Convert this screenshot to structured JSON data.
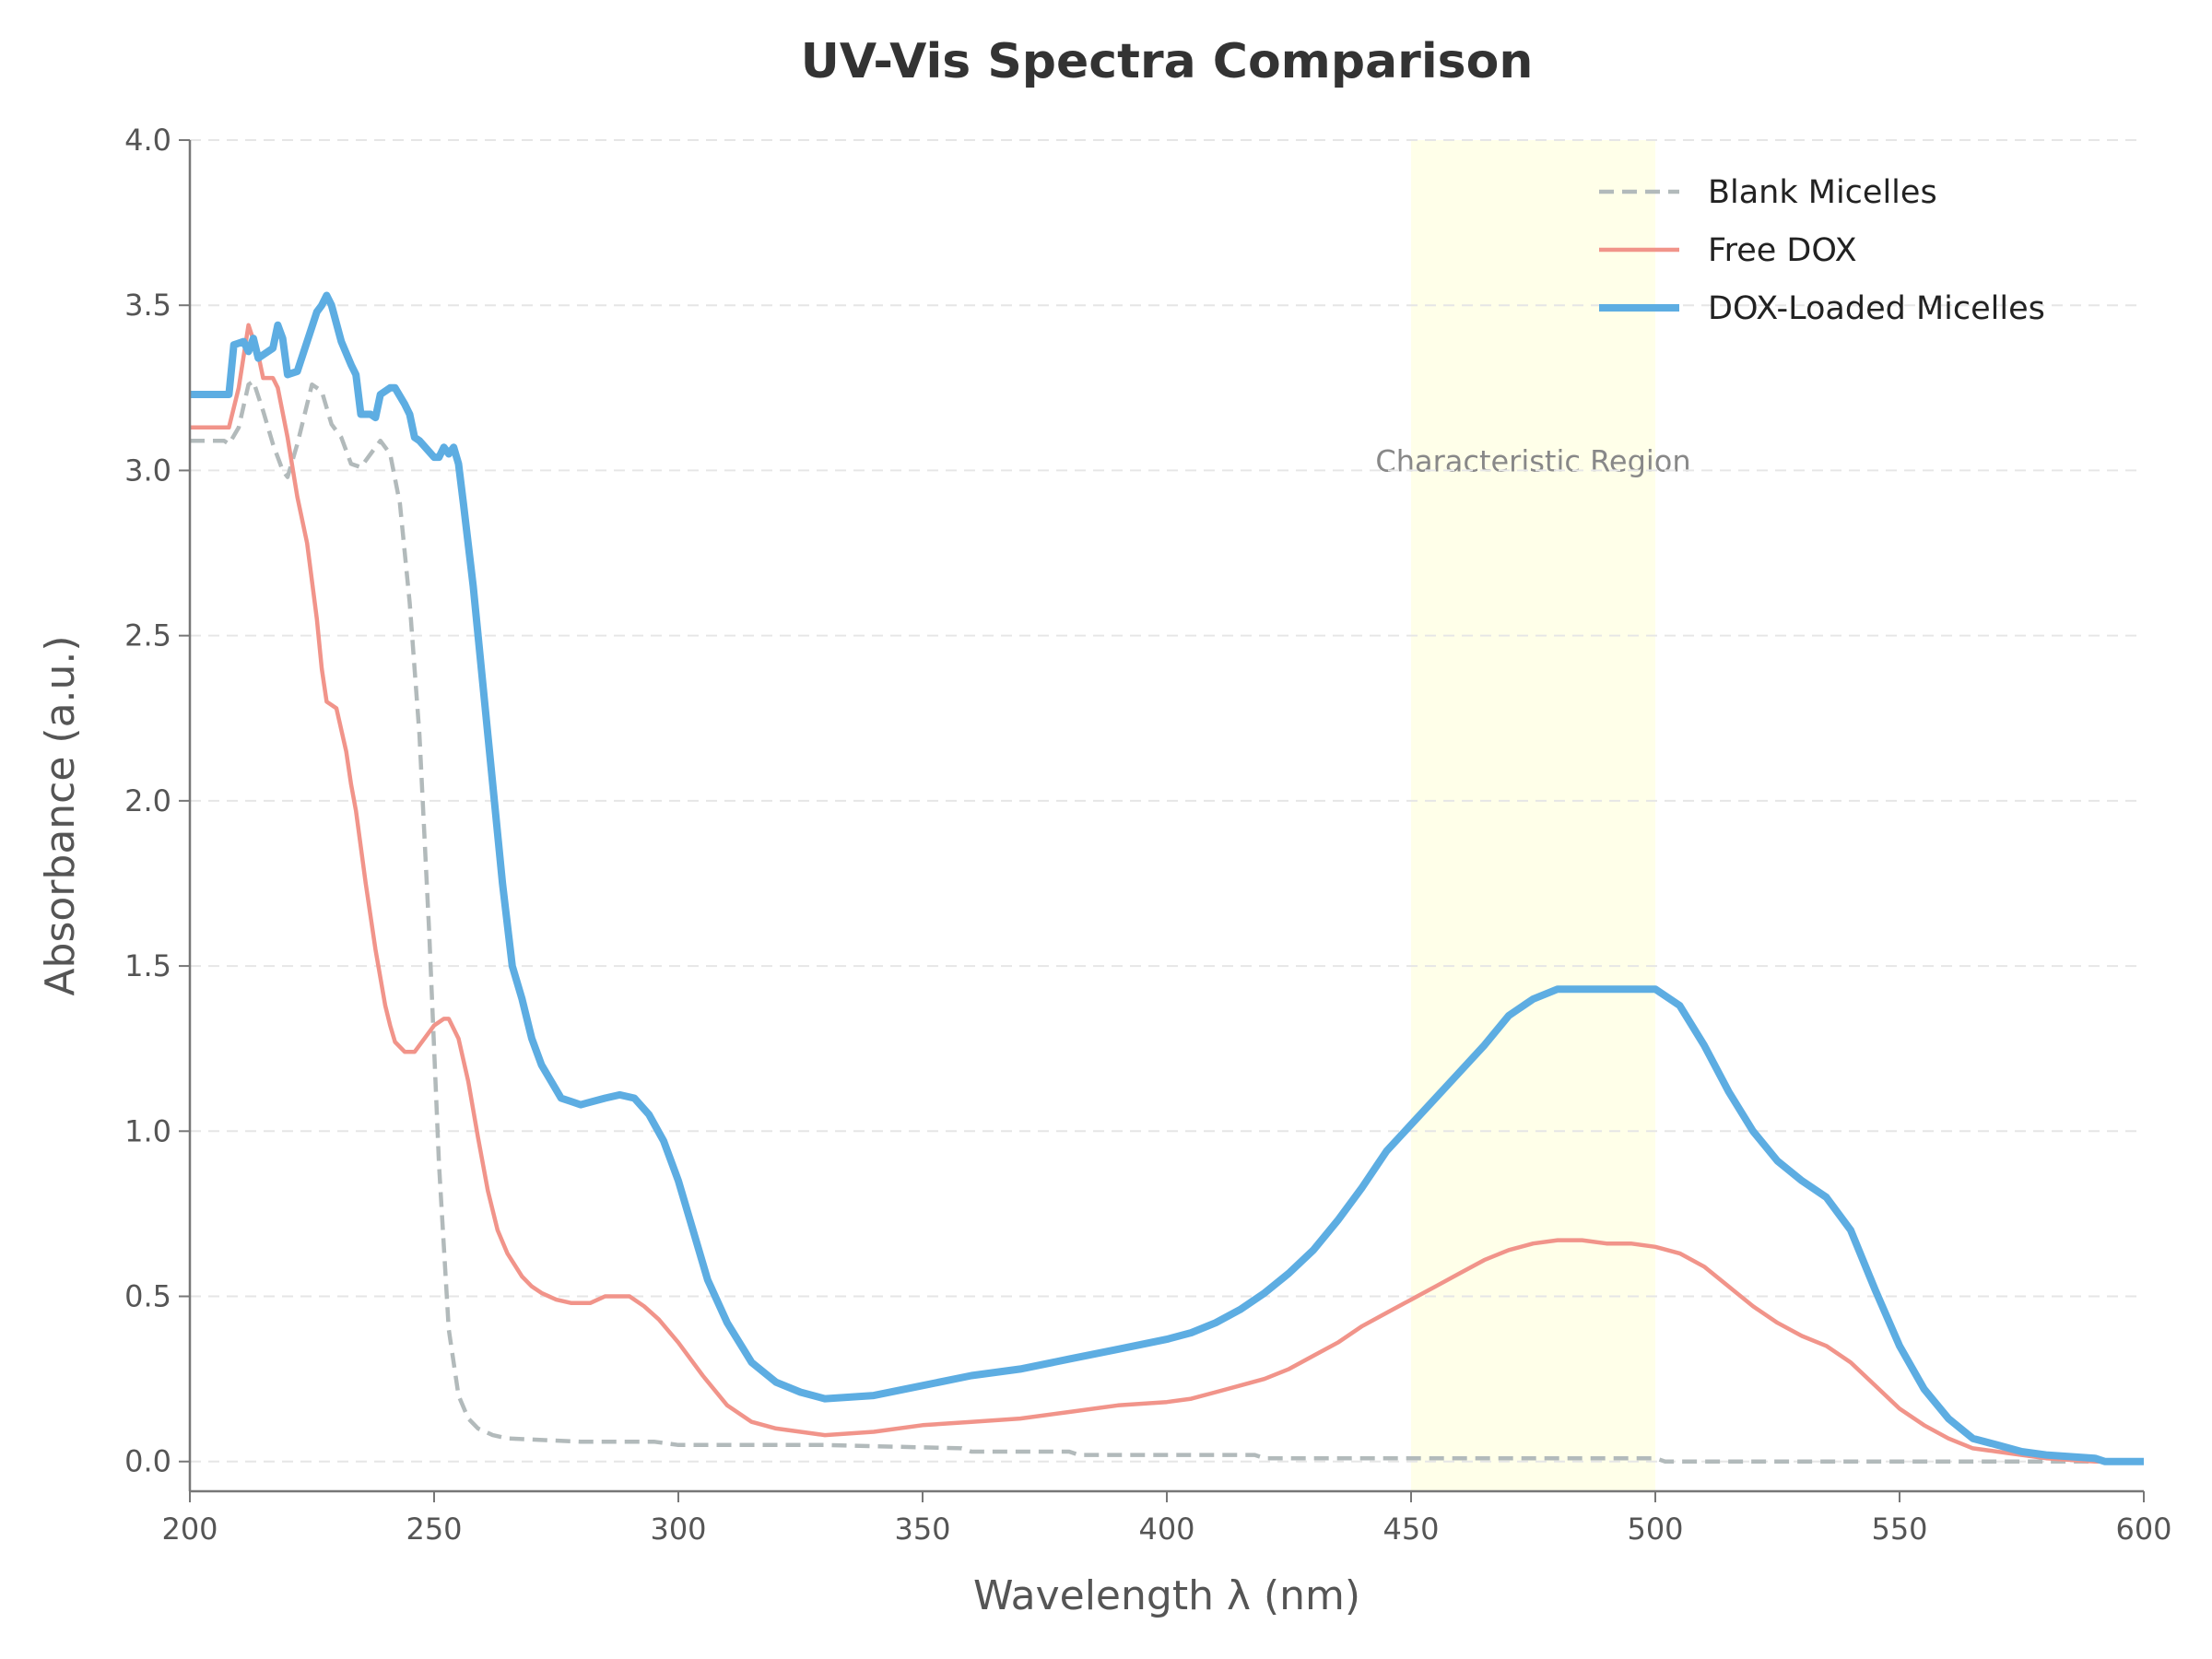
{
  "chart_data": {
    "type": "line",
    "title": "UV-Vis Spectra Comparison",
    "xlabel": "Wavelength λ (nm)",
    "ylabel": "Absorbance (a.u.)",
    "xlim": [
      200,
      600
    ],
    "ylim": [
      -0.09,
      4.0
    ],
    "xticks": [
      200,
      250,
      300,
      350,
      400,
      450,
      500,
      550,
      600
    ],
    "xtick_labels": [
      "200",
      "250",
      "300",
      "350",
      "400",
      "450",
      "500",
      "550",
      "600"
    ],
    "yticks": [
      0,
      0.5,
      1.0,
      1.5,
      2.0,
      2.5,
      3.0,
      3.5,
      4.0
    ],
    "ytick_labels": [
      "0.0",
      "0.5",
      "1.0",
      "1.5",
      "2.0",
      "2.5",
      "3.0",
      "3.5",
      "4.0"
    ],
    "grid": "horizontal dashed",
    "legend_position": "top-right",
    "highlight_region": {
      "x": [
        450,
        500
      ],
      "label": "Characteristic Region",
      "color": "#FFFFE0",
      "label_y": 3.03
    },
    "series": [
      {
        "name": "Blank Micelles",
        "color": "#B2BABB",
        "style": "dashed",
        "points": [
          [
            200,
            3.09
          ],
          [
            207,
            3.09
          ],
          [
            208,
            3.08
          ],
          [
            210,
            3.13
          ],
          [
            212,
            3.26
          ],
          [
            213,
            3.27
          ],
          [
            215,
            3.18
          ],
          [
            217,
            3.08
          ],
          [
            219,
            3.0
          ],
          [
            220,
            2.98
          ],
          [
            222,
            3.08
          ],
          [
            224,
            3.2
          ],
          [
            225,
            3.26
          ],
          [
            227,
            3.24
          ],
          [
            229,
            3.14
          ],
          [
            231,
            3.1
          ],
          [
            233,
            3.02
          ],
          [
            235,
            3.01
          ],
          [
            237,
            3.05
          ],
          [
            238,
            3.07
          ],
          [
            239,
            3.09
          ],
          [
            241,
            3.05
          ],
          [
            243,
            2.9
          ],
          [
            245,
            2.6
          ],
          [
            247,
            2.2
          ],
          [
            249,
            1.6
          ],
          [
            251,
            0.9
          ],
          [
            253,
            0.4
          ],
          [
            255,
            0.2
          ],
          [
            257,
            0.13
          ],
          [
            259,
            0.1
          ],
          [
            262,
            0.08
          ],
          [
            265,
            0.07
          ],
          [
            280,
            0.06
          ],
          [
            295,
            0.06
          ],
          [
            300,
            0.05
          ],
          [
            330,
            0.05
          ],
          [
            358,
            0.04
          ],
          [
            360,
            0.03
          ],
          [
            380,
            0.03
          ],
          [
            382,
            0.02
          ],
          [
            418,
            0.02
          ],
          [
            420,
            0.01
          ],
          [
            500,
            0.01
          ],
          [
            502,
            0.0
          ],
          [
            600,
            0.0
          ]
        ]
      },
      {
        "name": "Free DOX",
        "color": "#F1948A",
        "style": "solid",
        "points": [
          [
            200,
            3.13
          ],
          [
            208,
            3.13
          ],
          [
            210,
            3.25
          ],
          [
            212,
            3.44
          ],
          [
            214,
            3.35
          ],
          [
            215,
            3.28
          ],
          [
            217,
            3.28
          ],
          [
            218,
            3.25
          ],
          [
            220,
            3.1
          ],
          [
            222,
            2.92
          ],
          [
            224,
            2.78
          ],
          [
            226,
            2.55
          ],
          [
            227,
            2.4
          ],
          [
            228,
            2.3
          ],
          [
            229,
            2.29
          ],
          [
            230,
            2.28
          ],
          [
            232,
            2.15
          ],
          [
            233,
            2.05
          ],
          [
            234,
            1.97
          ],
          [
            236,
            1.75
          ],
          [
            238,
            1.55
          ],
          [
            240,
            1.38
          ],
          [
            241,
            1.32
          ],
          [
            242,
            1.27
          ],
          [
            244,
            1.24
          ],
          [
            246,
            1.24
          ],
          [
            248,
            1.28
          ],
          [
            250,
            1.32
          ],
          [
            252,
            1.34
          ],
          [
            253,
            1.34
          ],
          [
            255,
            1.28
          ],
          [
            257,
            1.15
          ],
          [
            259,
            0.98
          ],
          [
            261,
            0.82
          ],
          [
            263,
            0.7
          ],
          [
            265,
            0.63
          ],
          [
            268,
            0.56
          ],
          [
            270,
            0.53
          ],
          [
            272,
            0.51
          ],
          [
            275,
            0.49
          ],
          [
            278,
            0.48
          ],
          [
            282,
            0.48
          ],
          [
            285,
            0.5
          ],
          [
            290,
            0.5
          ],
          [
            293,
            0.47
          ],
          [
            296,
            0.43
          ],
          [
            300,
            0.36
          ],
          [
            305,
            0.26
          ],
          [
            310,
            0.17
          ],
          [
            315,
            0.12
          ],
          [
            320,
            0.1
          ],
          [
            325,
            0.09
          ],
          [
            330,
            0.08
          ],
          [
            340,
            0.09
          ],
          [
            350,
            0.11
          ],
          [
            360,
            0.12
          ],
          [
            370,
            0.13
          ],
          [
            380,
            0.15
          ],
          [
            390,
            0.17
          ],
          [
            400,
            0.18
          ],
          [
            405,
            0.19
          ],
          [
            410,
            0.21
          ],
          [
            415,
            0.23
          ],
          [
            420,
            0.25
          ],
          [
            425,
            0.28
          ],
          [
            430,
            0.32
          ],
          [
            435,
            0.36
          ],
          [
            440,
            0.41
          ],
          [
            445,
            0.45
          ],
          [
            450,
            0.49
          ],
          [
            455,
            0.53
          ],
          [
            460,
            0.57
          ],
          [
            465,
            0.61
          ],
          [
            470,
            0.64
          ],
          [
            475,
            0.66
          ],
          [
            480,
            0.67
          ],
          [
            485,
            0.67
          ],
          [
            490,
            0.66
          ],
          [
            495,
            0.66
          ],
          [
            500,
            0.65
          ],
          [
            505,
            0.63
          ],
          [
            510,
            0.59
          ],
          [
            515,
            0.53
          ],
          [
            520,
            0.47
          ],
          [
            525,
            0.42
          ],
          [
            530,
            0.38
          ],
          [
            535,
            0.35
          ],
          [
            540,
            0.3
          ],
          [
            545,
            0.23
          ],
          [
            550,
            0.16
          ],
          [
            555,
            0.11
          ],
          [
            560,
            0.07
          ],
          [
            565,
            0.04
          ],
          [
            570,
            0.03
          ],
          [
            575,
            0.02
          ],
          [
            580,
            0.01
          ],
          [
            590,
            0.0
          ],
          [
            600,
            0.0
          ]
        ]
      },
      {
        "name": "DOX-Loaded Micelles",
        "color": "#5DADE2",
        "style": "solid-thick",
        "points": [
          [
            200,
            3.23
          ],
          [
            208,
            3.23
          ],
          [
            209,
            3.38
          ],
          [
            211,
            3.39
          ],
          [
            212,
            3.36
          ],
          [
            213,
            3.4
          ],
          [
            214,
            3.34
          ],
          [
            215,
            3.35
          ],
          [
            217,
            3.37
          ],
          [
            218,
            3.44
          ],
          [
            219,
            3.4
          ],
          [
            220,
            3.29
          ],
          [
            222,
            3.3
          ],
          [
            226,
            3.48
          ],
          [
            227,
            3.5
          ],
          [
            228,
            3.53
          ],
          [
            229,
            3.5
          ],
          [
            231,
            3.39
          ],
          [
            233,
            3.32
          ],
          [
            234,
            3.29
          ],
          [
            235,
            3.17
          ],
          [
            237,
            3.17
          ],
          [
            238,
            3.16
          ],
          [
            239,
            3.23
          ],
          [
            241,
            3.25
          ],
          [
            242,
            3.25
          ],
          [
            244,
            3.2
          ],
          [
            245,
            3.17
          ],
          [
            246,
            3.1
          ],
          [
            247,
            3.09
          ],
          [
            250,
            3.04
          ],
          [
            251,
            3.04
          ],
          [
            252,
            3.07
          ],
          [
            253,
            3.05
          ],
          [
            254,
            3.07
          ],
          [
            255,
            3.02
          ],
          [
            256,
            2.9
          ],
          [
            258,
            2.65
          ],
          [
            260,
            2.35
          ],
          [
            262,
            2.05
          ],
          [
            264,
            1.75
          ],
          [
            266,
            1.5
          ],
          [
            268,
            1.4
          ],
          [
            270,
            1.28
          ],
          [
            272,
            1.2
          ],
          [
            274,
            1.15
          ],
          [
            276,
            1.1
          ],
          [
            278,
            1.09
          ],
          [
            280,
            1.08
          ],
          [
            285,
            1.1
          ],
          [
            288,
            1.11
          ],
          [
            291,
            1.1
          ],
          [
            294,
            1.05
          ],
          [
            297,
            0.97
          ],
          [
            300,
            0.85
          ],
          [
            303,
            0.7
          ],
          [
            306,
            0.55
          ],
          [
            310,
            0.42
          ],
          [
            315,
            0.3
          ],
          [
            320,
            0.24
          ],
          [
            325,
            0.21
          ],
          [
            330,
            0.19
          ],
          [
            340,
            0.2
          ],
          [
            350,
            0.23
          ],
          [
            360,
            0.26
          ],
          [
            370,
            0.28
          ],
          [
            380,
            0.31
          ],
          [
            390,
            0.34
          ],
          [
            400,
            0.37
          ],
          [
            405,
            0.39
          ],
          [
            410,
            0.42
          ],
          [
            415,
            0.46
          ],
          [
            420,
            0.51
          ],
          [
            425,
            0.57
          ],
          [
            430,
            0.64
          ],
          [
            435,
            0.73
          ],
          [
            440,
            0.83
          ],
          [
            445,
            0.94
          ],
          [
            450,
            1.02
          ],
          [
            455,
            1.1
          ],
          [
            460,
            1.18
          ],
          [
            465,
            1.26
          ],
          [
            470,
            1.35
          ],
          [
            475,
            1.4
          ],
          [
            480,
            1.43
          ],
          [
            490,
            1.43
          ],
          [
            500,
            1.43
          ],
          [
            505,
            1.38
          ],
          [
            510,
            1.26
          ],
          [
            515,
            1.12
          ],
          [
            520,
            1.0
          ],
          [
            525,
            0.91
          ],
          [
            530,
            0.85
          ],
          [
            535,
            0.8
          ],
          [
            540,
            0.7
          ],
          [
            545,
            0.52
          ],
          [
            550,
            0.35
          ],
          [
            555,
            0.22
          ],
          [
            560,
            0.13
          ],
          [
            565,
            0.07
          ],
          [
            570,
            0.05
          ],
          [
            575,
            0.03
          ],
          [
            580,
            0.02
          ],
          [
            590,
            0.01
          ],
          [
            592,
            0.0
          ],
          [
            600,
            0.0
          ]
        ]
      }
    ]
  }
}
